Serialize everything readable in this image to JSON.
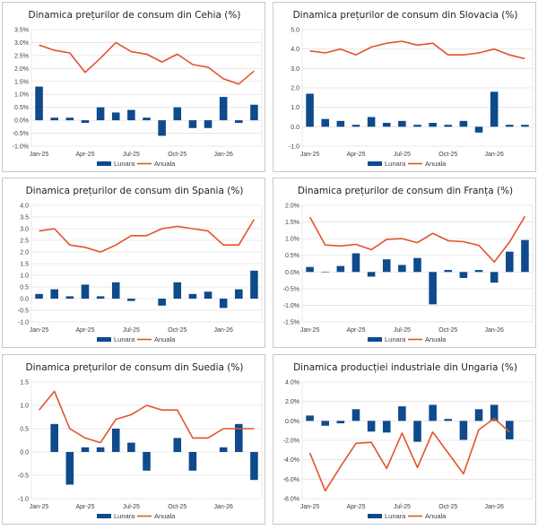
{
  "colors": {
    "bar": "#0e4a8c",
    "line": "#e2532b"
  },
  "legend": {
    "bar_label": "Lunara",
    "line_label": "Anuala"
  },
  "chart_data": [
    {
      "type": "bar+line",
      "title": "Dinamica prețurilor de consum din Cehia (%)",
      "categories": [
        "Jan-25",
        "Feb-25",
        "Mar-25",
        "Apr-25",
        "May-25",
        "Jun-25",
        "Jul-25",
        "Aug-25",
        "Sep-25",
        "Oct-25",
        "Nov-25",
        "Dec-25",
        "Jan-26",
        "Feb-26",
        "Mar-26"
      ],
      "x_tick_labels": [
        "Jan-25",
        "Apr-25",
        "Jul-25",
        "Oct-25",
        "Jan-26"
      ],
      "y_ticks": [
        "-1.0%",
        "-0.5%",
        "0.0%",
        "0.5%",
        "1.0%",
        "1.5%",
        "2.0%",
        "2.5%",
        "3.0%",
        "3.5%"
      ],
      "ylim": [
        -1.0,
        3.5
      ],
      "series": [
        {
          "name": "Lunara",
          "type": "bar",
          "values": [
            1.3,
            0.1,
            0.1,
            -0.1,
            0.5,
            0.3,
            0.4,
            0.1,
            -0.6,
            0.5,
            -0.3,
            -0.3,
            0.9,
            -0.1,
            0.6
          ]
        },
        {
          "name": "Anuala",
          "type": "line",
          "values": [
            2.9,
            2.7,
            2.6,
            1.85,
            2.4,
            3.0,
            2.65,
            2.55,
            2.25,
            2.55,
            2.15,
            2.05,
            1.6,
            1.4,
            1.9
          ]
        }
      ],
      "legend": "bottom"
    },
    {
      "type": "bar+line",
      "title": "Dinamica prețurilor de consum din Slovacia (%)",
      "categories": [
        "Jan-25",
        "Feb-25",
        "Mar-25",
        "Apr-25",
        "May-25",
        "Jun-25",
        "Jul-25",
        "Aug-25",
        "Sep-25",
        "Oct-25",
        "Nov-25",
        "Dec-25",
        "Jan-26",
        "Feb-26",
        "Mar-26"
      ],
      "x_tick_labels": [
        "Jan-25",
        "Apr-25",
        "Jul-25",
        "Oct-25",
        "Jan-26"
      ],
      "y_ticks": [
        "-1.0",
        "0.0",
        "1.0",
        "2.0",
        "3.0",
        "4.0",
        "5.0"
      ],
      "ylim": [
        -1.0,
        5.0
      ],
      "series": [
        {
          "name": "Lunara",
          "type": "bar",
          "values": [
            1.7,
            0.4,
            0.3,
            0.1,
            0.5,
            0.2,
            0.3,
            0.1,
            0.2,
            0.1,
            0.3,
            -0.3,
            1.8,
            0.1,
            0.1
          ]
        },
        {
          "name": "Anuala",
          "type": "line",
          "values": [
            3.9,
            3.8,
            4.0,
            3.7,
            4.1,
            4.3,
            4.4,
            4.2,
            4.3,
            3.7,
            3.7,
            3.8,
            4.0,
            3.7,
            3.5
          ]
        }
      ],
      "legend": "bottom"
    },
    {
      "type": "bar+line",
      "title": "Dinamica prețurilor de consum din Spania (%)",
      "categories": [
        "Jan-25",
        "Feb-25",
        "Mar-25",
        "Apr-25",
        "May-25",
        "Jun-25",
        "Jul-25",
        "Aug-25",
        "Sep-25",
        "Oct-25",
        "Nov-25",
        "Dec-25",
        "Jan-26",
        "Feb-26",
        "Mar-26"
      ],
      "x_tick_labels": [
        "Jan-25",
        "Apr-25",
        "Jul-25",
        "Oct-25",
        "Jan-26"
      ],
      "y_ticks": [
        "-1.0",
        "-0.5",
        "0.0",
        "0.5",
        "1.0",
        "1.5",
        "2.0",
        "2.5",
        "3.0",
        "3.5",
        "4.0"
      ],
      "ylim": [
        -1.0,
        4.0
      ],
      "series": [
        {
          "name": "Lunara",
          "type": "bar",
          "values": [
            0.2,
            0.4,
            0.1,
            0.6,
            0.1,
            0.7,
            -0.1,
            0.0,
            -0.3,
            0.7,
            0.2,
            0.3,
            -0.4,
            0.4,
            1.2
          ]
        },
        {
          "name": "Anuala",
          "type": "line",
          "values": [
            2.9,
            3.0,
            2.3,
            2.2,
            2.0,
            2.3,
            2.7,
            2.7,
            3.0,
            3.1,
            3.0,
            2.9,
            2.3,
            2.3,
            3.4
          ]
        }
      ],
      "legend": "bottom"
    },
    {
      "type": "bar+line",
      "title": "Dinamica prețurilor de consum din Franța (%)",
      "categories": [
        "Jan-25",
        "Feb-25",
        "Mar-25",
        "Apr-25",
        "May-25",
        "Jun-25",
        "Jul-25",
        "Aug-25",
        "Sep-25",
        "Oct-25",
        "Nov-25",
        "Dec-25",
        "Jan-26",
        "Feb-26",
        "Mar-26"
      ],
      "x_tick_labels": [
        "Jan-25",
        "Apr-25",
        "Jul-25",
        "Oct-25",
        "Jan-26"
      ],
      "y_ticks": [
        "-1.5%",
        "-1.0%",
        "-0.5%",
        "0.0%",
        "0.5%",
        "1.0%",
        "1.5%",
        "2.0%"
      ],
      "ylim": [
        -1.5,
        2.0
      ],
      "series": [
        {
          "name": "Lunara",
          "type": "bar",
          "values": [
            0.15,
            0.01,
            0.18,
            0.56,
            -0.14,
            0.38,
            0.21,
            0.42,
            -0.97,
            0.06,
            -0.18,
            0.06,
            -0.32,
            0.61,
            0.96
          ]
        },
        {
          "name": "Anuala",
          "type": "line",
          "values": [
            1.65,
            0.81,
            0.78,
            0.83,
            0.67,
            0.98,
            1.0,
            0.88,
            1.16,
            0.94,
            0.91,
            0.8,
            0.3,
            0.9,
            1.67
          ]
        }
      ],
      "legend": "bottom"
    },
    {
      "type": "bar+line",
      "title": "Dinamica prețurilor de consum din Suedia (%)",
      "categories": [
        "Jan-25",
        "Feb-25",
        "Mar-25",
        "Apr-25",
        "May-25",
        "Jun-25",
        "Jul-25",
        "Aug-25",
        "Sep-25",
        "Oct-25",
        "Nov-25",
        "Dec-25",
        "Jan-26",
        "Feb-26",
        "Mar-26"
      ],
      "x_tick_labels": [
        "Jan-25",
        "Apr-25",
        "Jul-25",
        "Oct-25",
        "Jan-26"
      ],
      "y_ticks": [
        "-1.0",
        "-0.5",
        "0.0",
        "0.5",
        "1.0",
        "1.5"
      ],
      "ylim": [
        -1.0,
        1.5
      ],
      "series": [
        {
          "name": "Lunara",
          "type": "bar",
          "values": [
            0.0,
            0.6,
            -0.7,
            0.1,
            0.1,
            0.5,
            0.2,
            -0.4,
            0.0,
            0.3,
            -0.4,
            0.0,
            0.1,
            0.6,
            -0.6
          ]
        },
        {
          "name": "Anuala",
          "type": "line",
          "values": [
            0.9,
            1.3,
            0.5,
            0.3,
            0.2,
            0.7,
            0.8,
            1.0,
            0.9,
            0.9,
            0.3,
            0.3,
            0.5,
            0.5,
            0.5
          ]
        }
      ],
      "legend": "bottom"
    },
    {
      "type": "bar+line",
      "title": "Dinamica producției industriale din Ungaria (%)",
      "categories": [
        "Jan-25",
        "Feb-25",
        "Mar-25",
        "Apr-25",
        "May-25",
        "Jun-25",
        "Jul-25",
        "Aug-25",
        "Sep-25",
        "Oct-25",
        "Nov-25",
        "Dec-25",
        "Jan-26",
        "Feb-26"
      ],
      "x_tick_labels": [
        "Jan-25",
        "Apr-25",
        "Jul-25",
        "Oct-25",
        "Jan-26"
      ],
      "y_ticks": [
        "-8.0%",
        "-6.0%",
        "-4.0%",
        "-2.0%",
        "0.0%",
        "2.0%",
        "4.0%"
      ],
      "ylim": [
        -8.0,
        4.0
      ],
      "series": [
        {
          "name": "Lunara",
          "type": "bar",
          "values": [
            0.55,
            -0.5,
            -0.25,
            1.2,
            -1.1,
            -1.2,
            1.5,
            -2.15,
            1.65,
            0.2,
            -1.95,
            1.2,
            1.65,
            -1.9
          ]
        },
        {
          "name": "Anuala",
          "type": "line",
          "values": [
            -3.3,
            -7.2,
            -4.7,
            -2.3,
            -2.2,
            -4.9,
            -1.25,
            -4.8,
            -1.15,
            -3.3,
            -5.45,
            -0.9,
            0.25,
            -1.15
          ]
        }
      ],
      "legend": "bottom"
    }
  ]
}
